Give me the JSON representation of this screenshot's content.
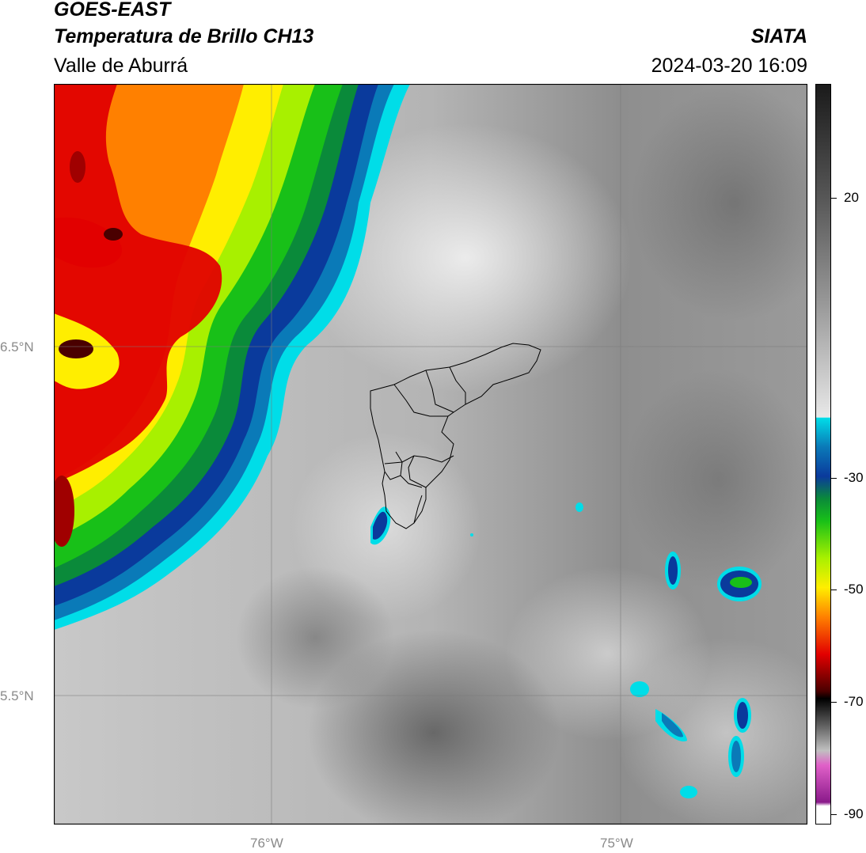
{
  "header": {
    "satellite": "GOES-EAST",
    "product": "Temperatura de Brillo CH13",
    "region": "Valle de Aburrá",
    "brand": "SIATA",
    "datetime": "2024-03-20 16:09"
  },
  "axes": {
    "lat_labels": [
      "6.5°N",
      "5.5°N"
    ],
    "lon_labels": [
      "76°W",
      "75°W"
    ]
  },
  "colorbar": {
    "ticks": [
      "20",
      "-30",
      "-50",
      "-70",
      "-90"
    ],
    "colors": {
      "cyan": "#00dde8",
      "blue": "#0a3a9c",
      "green": "#18c018",
      "lime": "#a8f000",
      "yellow": "#ffee00",
      "orange": "#ff8000",
      "red": "#e20000",
      "darkred": "#4a0000",
      "black": "#000000",
      "pink": "#e060c8",
      "purple": "#8a1a8a"
    }
  }
}
